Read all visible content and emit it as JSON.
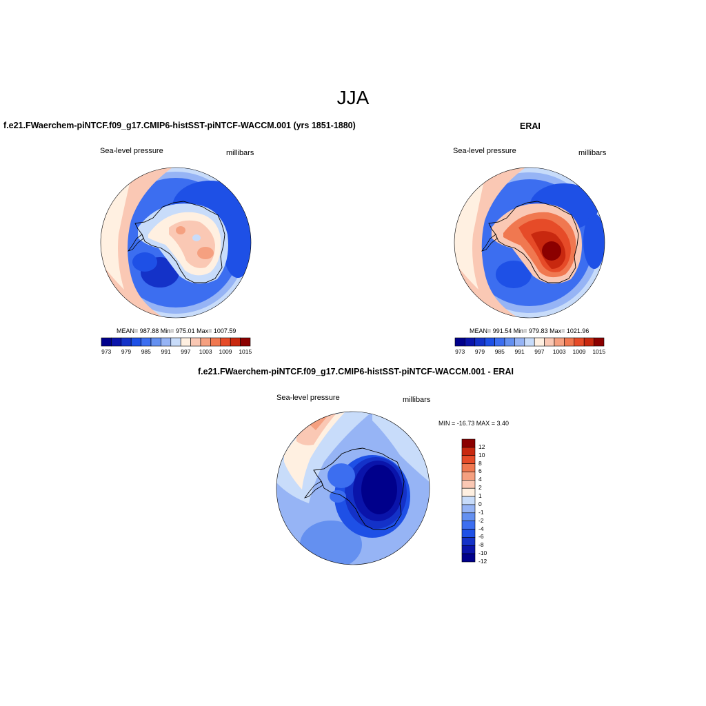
{
  "figure": {
    "title": "JJA"
  },
  "panels": {
    "model": {
      "title": "f.e21.FWaerchem-piNTCF.f09_g17.CMIP6-histSST-piNTCF-WACCM.001 (yrs 1851-1880)",
      "variable": "Sea-level pressure",
      "units": "millibars",
      "stats": "MEAN= 987.88   Min= 975.01   Max= 1007.59"
    },
    "obs": {
      "title": "ERAI",
      "variable": "Sea-level pressure",
      "units": "millibars",
      "stats": "MEAN= 991.54   Min= 979.83   Max= 1021.96"
    },
    "diff": {
      "title": "f.e21.FWaerchem-piNTCF.f09_g17.CMIP6-histSST-piNTCF-WACCM.001 - ERAI",
      "variable": "Sea-level pressure",
      "units": "millibars",
      "stats": "MIN = -16.73 MAX =   3.40"
    }
  },
  "colorbar_abs": {
    "colors": [
      "#00008b",
      "#0a14aa",
      "#1432c8",
      "#1e50e6",
      "#3c6ef0",
      "#6490f0",
      "#96b4f5",
      "#c8dcfa",
      "#fff0e1",
      "#fac8b4",
      "#f5a080",
      "#f07850",
      "#e64b28",
      "#c8280f",
      "#8b0000"
    ],
    "tick_labels": [
      "973",
      "979",
      "985",
      "991",
      "997",
      "1003",
      "1009",
      "1015"
    ]
  },
  "colorbar_diff": {
    "colors": [
      "#00008b",
      "#0a14aa",
      "#1432c8",
      "#1e50e6",
      "#3c6ef0",
      "#6490f0",
      "#96b4f5",
      "#c8dcfa",
      "#fff0e1",
      "#fac8b4",
      "#f5a080",
      "#f07850",
      "#e64b28",
      "#c8280f",
      "#8b0000"
    ],
    "tick_labels": [
      "12",
      "10",
      "8",
      "6",
      "4",
      "2",
      "1",
      "0",
      "-1",
      "-2",
      "-4",
      "-6",
      "-8",
      "-10",
      "-12"
    ]
  }
}
